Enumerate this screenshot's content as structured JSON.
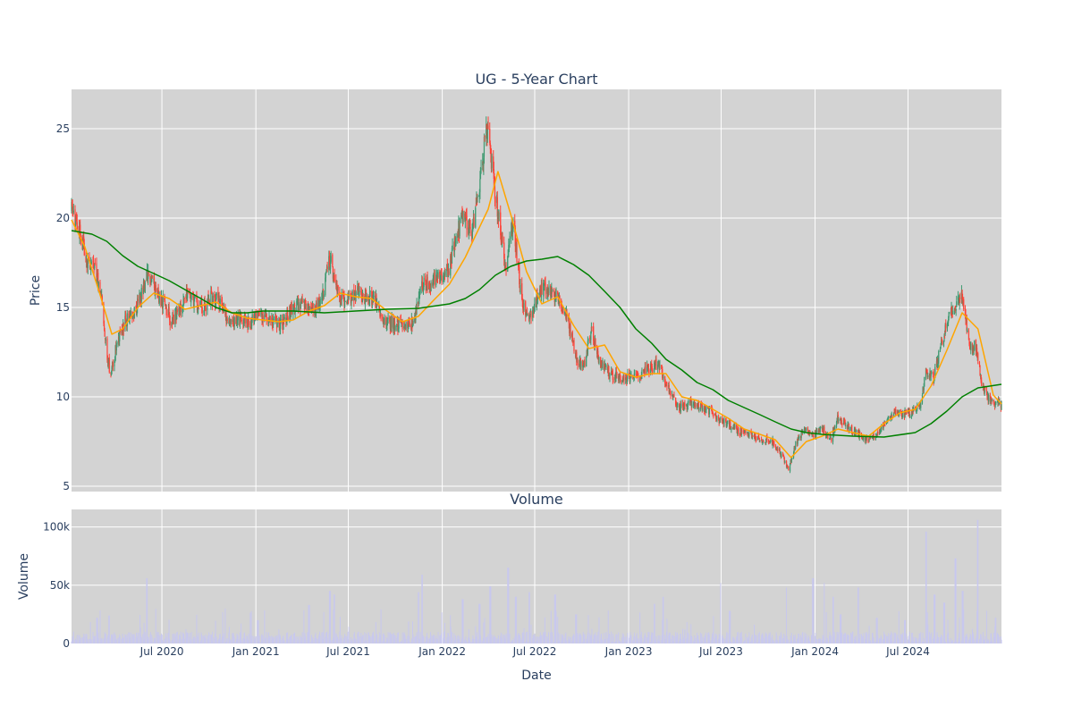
{
  "chart_data": [
    {
      "type": "candlestick",
      "title": "UG - 5-Year Chart",
      "xlabel": "",
      "ylabel": "Price",
      "ylim": [
        4.7,
        27.2
      ],
      "yticks": [
        5,
        10,
        15,
        20,
        25
      ],
      "x_range": [
        "2020-01-06",
        "2024-12-31"
      ],
      "grid": true,
      "background": "#d3d3d3",
      "up_color": "#3d9970",
      "down_color": "#ff4136",
      "overlay_lines": [
        {
          "color": "#ffa500",
          "points": [
            [
              "2020-01-06",
              19.9
            ],
            [
              "2020-02-01",
              18.4
            ],
            [
              "2020-03-01",
              15.8
            ],
            [
              "2020-03-25",
              13.5
            ],
            [
              "2020-04-15",
              13.8
            ],
            [
              "2020-05-15",
              15.0
            ],
            [
              "2020-06-15",
              15.8
            ],
            [
              "2020-07-15",
              15.5
            ],
            [
              "2020-08-15",
              14.9
            ],
            [
              "2020-09-15",
              15.1
            ],
            [
              "2020-10-15",
              15.3
            ],
            [
              "2020-11-15",
              14.7
            ],
            [
              "2020-12-15",
              14.4
            ],
            [
              "2021-01-15",
              14.3
            ],
            [
              "2021-02-15",
              14.2
            ],
            [
              "2021-03-15",
              14.3
            ],
            [
              "2021-04-15",
              14.8
            ],
            [
              "2021-05-15",
              15.1
            ],
            [
              "2021-06-15",
              15.8
            ],
            [
              "2021-07-15",
              15.6
            ],
            [
              "2021-08-15",
              15.5
            ],
            [
              "2021-09-15",
              14.8
            ],
            [
              "2021-10-15",
              14.2
            ],
            [
              "2021-11-15",
              14.5
            ],
            [
              "2021-12-15",
              15.4
            ],
            [
              "2022-01-15",
              16.3
            ],
            [
              "2022-02-15",
              17.8
            ],
            [
              "2022-03-10",
              19.2
            ],
            [
              "2022-04-01",
              20.5
            ],
            [
              "2022-04-20",
              22.6
            ],
            [
              "2022-05-15",
              20.2
            ],
            [
              "2022-06-15",
              17.0
            ],
            [
              "2022-07-15",
              15.2
            ],
            [
              "2022-08-15",
              15.6
            ],
            [
              "2022-09-15",
              14.0
            ],
            [
              "2022-10-15",
              12.7
            ],
            [
              "2022-11-15",
              12.9
            ],
            [
              "2022-12-15",
              11.4
            ],
            [
              "2023-01-15",
              11.1
            ],
            [
              "2023-02-15",
              11.3
            ],
            [
              "2023-03-15",
              11.3
            ],
            [
              "2023-04-15",
              10.0
            ],
            [
              "2023-05-15",
              9.8
            ],
            [
              "2023-06-15",
              9.3
            ],
            [
              "2023-07-15",
              8.8
            ],
            [
              "2023-08-15",
              8.2
            ],
            [
              "2023-09-15",
              7.9
            ],
            [
              "2023-10-15",
              7.6
            ],
            [
              "2023-11-15",
              6.6
            ],
            [
              "2023-12-15",
              7.5
            ],
            [
              "2024-01-15",
              7.8
            ],
            [
              "2024-02-15",
              8.2
            ],
            [
              "2024-03-15",
              8.0
            ],
            [
              "2024-04-15",
              7.8
            ],
            [
              "2024-05-15",
              8.5
            ],
            [
              "2024-06-15",
              9.1
            ],
            [
              "2024-07-15",
              9.3
            ],
            [
              "2024-08-15",
              10.6
            ],
            [
              "2024-09-15",
              12.6
            ],
            [
              "2024-10-15",
              14.7
            ],
            [
              "2024-11-15",
              13.8
            ],
            [
              "2024-12-15",
              10.1
            ],
            [
              "2024-12-31",
              9.6
            ]
          ]
        },
        {
          "color": "#008000",
          "points": [
            [
              "2020-01-06",
              19.3
            ],
            [
              "2020-02-15",
              19.1
            ],
            [
              "2020-03-15",
              18.7
            ],
            [
              "2020-04-15",
              17.9
            ],
            [
              "2020-05-15",
              17.3
            ],
            [
              "2020-06-15",
              16.9
            ],
            [
              "2020-07-15",
              16.5
            ],
            [
              "2020-08-15",
              16.0
            ],
            [
              "2020-09-15",
              15.5
            ],
            [
              "2020-10-15",
              15.0
            ],
            [
              "2020-11-15",
              14.7
            ],
            [
              "2020-12-15",
              14.7
            ],
            [
              "2021-01-15",
              14.8
            ],
            [
              "2021-03-15",
              14.8
            ],
            [
              "2021-05-15",
              14.7
            ],
            [
              "2021-07-15",
              14.8
            ],
            [
              "2021-09-15",
              14.9
            ],
            [
              "2021-11-15",
              14.95
            ],
            [
              "2022-01-15",
              15.2
            ],
            [
              "2022-02-15",
              15.5
            ],
            [
              "2022-03-15",
              16.0
            ],
            [
              "2022-04-15",
              16.8
            ],
            [
              "2022-05-15",
              17.3
            ],
            [
              "2022-06-15",
              17.6
            ],
            [
              "2022-07-15",
              17.7
            ],
            [
              "2022-08-15",
              17.85
            ],
            [
              "2022-09-15",
              17.4
            ],
            [
              "2022-10-15",
              16.8
            ],
            [
              "2022-11-15",
              15.9
            ],
            [
              "2022-12-15",
              15.0
            ],
            [
              "2023-01-15",
              13.8
            ],
            [
              "2023-02-15",
              13.0
            ],
            [
              "2023-03-15",
              12.1
            ],
            [
              "2023-04-15",
              11.5
            ],
            [
              "2023-05-15",
              10.8
            ],
            [
              "2023-06-15",
              10.4
            ],
            [
              "2023-07-15",
              9.8
            ],
            [
              "2023-08-15",
              9.4
            ],
            [
              "2023-09-15",
              9.0
            ],
            [
              "2023-10-15",
              8.6
            ],
            [
              "2023-11-15",
              8.2
            ],
            [
              "2023-12-15",
              8.0
            ],
            [
              "2024-01-15",
              7.9
            ],
            [
              "2024-03-15",
              7.8
            ],
            [
              "2024-05-15",
              7.75
            ],
            [
              "2024-07-15",
              8.0
            ],
            [
              "2024-08-15",
              8.5
            ],
            [
              "2024-09-15",
              9.2
            ],
            [
              "2024-10-15",
              10.0
            ],
            [
              "2024-11-15",
              10.5
            ],
            [
              "2024-12-31",
              10.7
            ]
          ]
        }
      ],
      "price_path": [
        [
          "2020-01-06",
          20.4
        ],
        [
          "2020-01-20",
          19.6
        ],
        [
          "2020-02-05",
          17.6
        ],
        [
          "2020-02-20",
          17.2
        ],
        [
          "2020-03-05",
          15.5
        ],
        [
          "2020-03-15",
          12.5
        ],
        [
          "2020-03-23",
          11.2
        ],
        [
          "2020-04-05",
          13.2
        ],
        [
          "2020-04-20",
          14.2
        ],
        [
          "2020-05-05",
          14.6
        ],
        [
          "2020-05-20",
          15.6
        ],
        [
          "2020-06-05",
          17.0
        ],
        [
          "2020-06-20",
          15.8
        ],
        [
          "2020-07-05",
          15.2
        ],
        [
          "2020-07-20",
          14.2
        ],
        [
          "2020-08-05",
          15.0
        ],
        [
          "2020-08-20",
          15.8
        ],
        [
          "2020-09-05",
          15.3
        ],
        [
          "2020-09-20",
          14.9
        ],
        [
          "2020-10-05",
          15.6
        ],
        [
          "2020-10-20",
          15.3
        ],
        [
          "2020-11-05",
          14.5
        ],
        [
          "2020-11-20",
          14.2
        ],
        [
          "2020-12-05",
          14.4
        ],
        [
          "2020-12-20",
          14.2
        ],
        [
          "2021-01-10",
          14.5
        ],
        [
          "2021-02-01",
          14.2
        ],
        [
          "2021-02-20",
          14.0
        ],
        [
          "2021-03-10",
          14.8
        ],
        [
          "2021-04-01",
          15.2
        ],
        [
          "2021-04-20",
          14.8
        ],
        [
          "2021-05-10",
          15.4
        ],
        [
          "2021-05-25",
          17.8
        ],
        [
          "2021-06-10",
          15.8
        ],
        [
          "2021-06-25",
          15.4
        ],
        [
          "2021-07-15",
          15.8
        ],
        [
          "2021-08-01",
          15.6
        ],
        [
          "2021-08-20",
          15.5
        ],
        [
          "2021-09-10",
          14.3
        ],
        [
          "2021-10-01",
          14.0
        ],
        [
          "2021-10-20",
          14.2
        ],
        [
          "2021-11-05",
          14.0
        ],
        [
          "2021-11-20",
          16.2
        ],
        [
          "2021-12-10",
          16.4
        ],
        [
          "2021-12-28",
          16.8
        ],
        [
          "2022-01-15",
          17.2
        ],
        [
          "2022-01-30",
          19.4
        ],
        [
          "2022-02-15",
          20.0
        ],
        [
          "2022-02-28",
          19.0
        ],
        [
          "2022-03-15",
          21.8
        ],
        [
          "2022-03-28",
          25.3
        ],
        [
          "2022-04-10",
          22.5
        ],
        [
          "2022-04-25",
          19.2
        ],
        [
          "2022-05-05",
          17.2
        ],
        [
          "2022-05-20",
          19.8
        ],
        [
          "2022-06-05",
          15.4
        ],
        [
          "2022-06-20",
          14.4
        ],
        [
          "2022-07-05",
          15.5
        ],
        [
          "2022-07-20",
          16.1
        ],
        [
          "2022-08-05",
          15.8
        ],
        [
          "2022-08-20",
          15.3
        ],
        [
          "2022-09-05",
          14.2
        ],
        [
          "2022-09-20",
          12.2
        ],
        [
          "2022-10-05",
          11.6
        ],
        [
          "2022-10-20",
          13.8
        ],
        [
          "2022-11-05",
          12.0
        ],
        [
          "2022-11-20",
          11.4
        ],
        [
          "2022-12-05",
          11.2
        ],
        [
          "2022-12-20",
          11.0
        ],
        [
          "2023-01-10",
          11.1
        ],
        [
          "2023-01-30",
          11.4
        ],
        [
          "2023-02-15",
          11.6
        ],
        [
          "2023-03-01",
          11.9
        ],
        [
          "2023-03-20",
          10.4
        ],
        [
          "2023-04-10",
          9.4
        ],
        [
          "2023-05-01",
          9.6
        ],
        [
          "2023-05-20",
          9.5
        ],
        [
          "2023-06-10",
          9.2
        ],
        [
          "2023-07-01",
          8.6
        ],
        [
          "2023-07-20",
          8.4
        ],
        [
          "2023-08-10",
          8.0
        ],
        [
          "2023-09-01",
          7.8
        ],
        [
          "2023-09-20",
          7.6
        ],
        [
          "2023-10-10",
          7.5
        ],
        [
          "2023-10-30",
          6.6
        ],
        [
          "2023-11-10",
          6.0
        ],
        [
          "2023-11-25",
          7.4
        ],
        [
          "2023-12-10",
          8.2
        ],
        [
          "2023-12-28",
          7.8
        ],
        [
          "2024-01-15",
          8.2
        ],
        [
          "2024-02-01",
          7.6
        ],
        [
          "2024-02-15",
          8.8
        ],
        [
          "2024-03-01",
          8.4
        ],
        [
          "2024-03-20",
          8.0
        ],
        [
          "2024-04-10",
          7.6
        ],
        [
          "2024-05-01",
          7.9
        ],
        [
          "2024-05-20",
          8.6
        ],
        [
          "2024-06-05",
          9.2
        ],
        [
          "2024-06-25",
          9.0
        ],
        [
          "2024-07-10",
          9.2
        ],
        [
          "2024-07-25",
          9.4
        ],
        [
          "2024-08-05",
          11.4
        ],
        [
          "2024-08-20",
          11.0
        ],
        [
          "2024-09-05",
          13.0
        ],
        [
          "2024-09-20",
          14.6
        ],
        [
          "2024-10-05",
          15.2
        ],
        [
          "2024-10-15",
          15.8
        ],
        [
          "2024-10-28",
          13.0
        ],
        [
          "2024-11-10",
          12.8
        ],
        [
          "2024-11-25",
          10.4
        ],
        [
          "2024-12-10",
          9.8
        ],
        [
          "2024-12-31",
          9.6
        ]
      ]
    },
    {
      "type": "bar",
      "title": "Volume",
      "xlabel": "Date",
      "ylabel": "Volume",
      "ylim": [
        0,
        115000
      ],
      "yticks": [
        {
          "value": 0,
          "label": "0"
        },
        {
          "value": 50000,
          "label": "50k"
        },
        {
          "value": 100000,
          "label": "100k"
        }
      ],
      "xticks": [
        {
          "date": "2020-07-01",
          "label": "Jul 2020"
        },
        {
          "date": "2021-01-01",
          "label": "Jan 2021"
        },
        {
          "date": "2021-07-01",
          "label": "Jul 2021"
        },
        {
          "date": "2022-01-01",
          "label": "Jan 2022"
        },
        {
          "date": "2022-07-01",
          "label": "Jul 2022"
        },
        {
          "date": "2023-01-01",
          "label": "Jan 2023"
        },
        {
          "date": "2023-07-01",
          "label": "Jul 2023"
        },
        {
          "date": "2024-01-01",
          "label": "Jan 2024"
        },
        {
          "date": "2024-07-01",
          "label": "Jul 2024"
        }
      ],
      "bar_color": "#c8c8ee",
      "background": "#d3d3d3",
      "typical_volume": 6000,
      "spikes": [
        [
          "2020-06-01",
          56000
        ],
        [
          "2020-03-20",
          24000
        ],
        [
          "2020-02-25",
          22000
        ],
        [
          "2020-11-01",
          30000
        ],
        [
          "2021-01-05",
          20000
        ],
        [
          "2021-04-15",
          33000
        ],
        [
          "2021-05-26",
          45000
        ],
        [
          "2021-06-04",
          42000
        ],
        [
          "2021-11-22",
          59000
        ],
        [
          "2021-11-15",
          44000
        ],
        [
          "2022-02-10",
          38000
        ],
        [
          "2022-03-15",
          34000
        ],
        [
          "2022-04-05",
          49000
        ],
        [
          "2022-05-10",
          65000
        ],
        [
          "2022-05-25",
          40000
        ],
        [
          "2022-06-20",
          44000
        ],
        [
          "2022-08-10",
          42000
        ],
        [
          "2022-09-20",
          25000
        ],
        [
          "2023-02-20",
          34000
        ],
        [
          "2023-03-10",
          40000
        ],
        [
          "2023-07-01",
          52000
        ],
        [
          "2023-07-18",
          28000
        ],
        [
          "2023-11-05",
          48000
        ],
        [
          "2023-12-28",
          56000
        ],
        [
          "2024-01-20",
          52000
        ],
        [
          "2024-02-05",
          40000
        ],
        [
          "2024-02-20",
          25000
        ],
        [
          "2024-03-25",
          48000
        ],
        [
          "2024-05-01",
          22000
        ],
        [
          "2024-06-25",
          20000
        ],
        [
          "2024-08-05",
          96000
        ],
        [
          "2024-08-22",
          42000
        ],
        [
          "2024-09-10",
          35000
        ],
        [
          "2024-10-02",
          73000
        ],
        [
          "2024-10-16",
          45000
        ],
        [
          "2024-11-15",
          106000
        ],
        [
          "2024-12-01",
          28000
        ],
        [
          "2024-12-20",
          22000
        ]
      ]
    }
  ]
}
